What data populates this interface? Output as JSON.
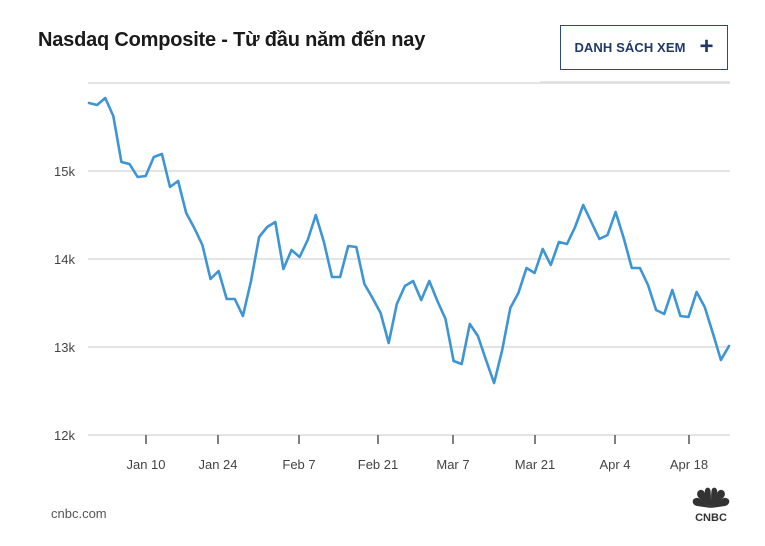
{
  "header": {
    "title": "Nasdaq Composite - Từ đầu năm đến nay",
    "watchlist_button": {
      "label": "DANH SÁCH XEM",
      "icon": "plus-icon"
    }
  },
  "footer": {
    "source": "cnbc.com",
    "logo": {
      "text": "CNBC",
      "icon": "cnbc-peacock-icon"
    }
  },
  "colors": {
    "line": "#3d95d5",
    "grid": "#dcdcdc",
    "button_border": "#2a4a7f",
    "button_text": "#1f3a66",
    "title": "#1a1a1a"
  },
  "chart_data": {
    "type": "line",
    "title": "Nasdaq Composite - Từ đầu năm đến nay",
    "xlabel": "",
    "ylabel": "",
    "ylim": [
      12000,
      16000
    ],
    "yticks": [
      12000,
      13000,
      14000,
      15000,
      16000
    ],
    "ytick_labels": [
      "12k",
      "13k",
      "14k",
      "15k",
      ""
    ],
    "xtick_labels": [
      "Jan 10",
      "Jan 24",
      "Feb 7",
      "Feb 21",
      "Mar 7",
      "Mar 21",
      "Apr 4",
      "Apr 18"
    ],
    "grid": true,
    "legend": null,
    "series": [
      {
        "name": "Nasdaq Composite",
        "values": [
          15773,
          15750,
          15830,
          15625,
          15102,
          15080,
          14932,
          14943,
          15159,
          15193,
          14818,
          14886,
          14523,
          14352,
          14159,
          13773,
          13864,
          13545,
          13545,
          13352,
          13750,
          14250,
          14364,
          14420,
          13886,
          14102,
          14023,
          14216,
          14500,
          14193,
          13795,
          13795,
          14148,
          14136,
          13716,
          13557,
          13386,
          13045,
          13489,
          13693,
          13750,
          13534,
          13750,
          13523,
          13318,
          12841,
          12807,
          13261,
          13125,
          12852,
          12591,
          12966,
          13443,
          13614,
          13898,
          13841,
          14114,
          13932,
          14193,
          14170,
          14364,
          14614,
          14420,
          14227,
          14273,
          14534,
          14239,
          13898,
          13898,
          13705,
          13420,
          13375,
          13648,
          13352,
          13341,
          13625,
          13455,
          13159,
          12852,
          13011
        ]
      }
    ]
  }
}
